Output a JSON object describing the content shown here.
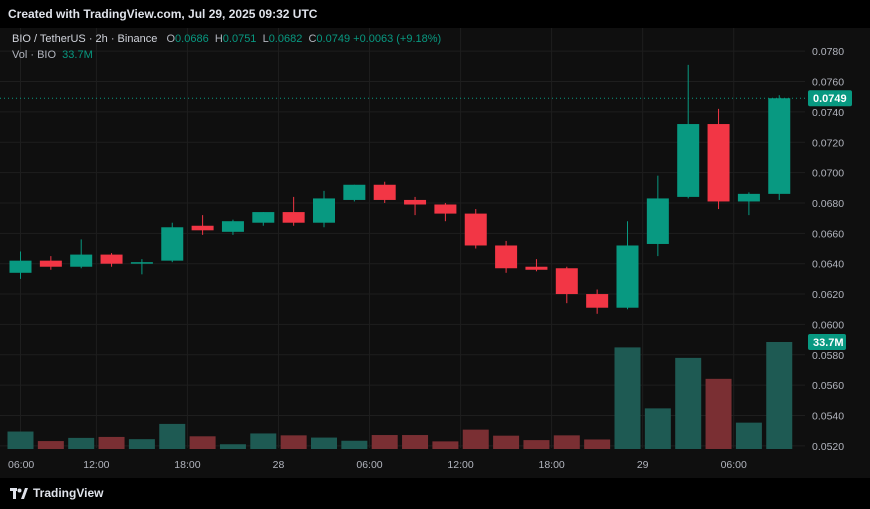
{
  "header": {
    "created_text": "Created with TradingView.com, Jul 29, 2025 09:32 UTC",
    "symbol": "BIO / TetherUS · 2h · Binance",
    "o_label": "O",
    "o_value": "0.0686",
    "h_label": "H",
    "h_value": "0.0751",
    "l_label": "L",
    "l_value": "0.0682",
    "c_label": "C",
    "c_value": "0.0749",
    "change": "+0.0063 (+9.18%)",
    "vol_label": "Vol · BIO",
    "vol_value": "33.7M"
  },
  "footer": {
    "brand": "TradingView"
  },
  "colors": {
    "up": "#089981",
    "down": "#f23645",
    "up_vol": "#1e5a53",
    "down_vol": "#7a2f33",
    "grid": "#1e1e1e"
  },
  "chart_data": {
    "type": "candlestick",
    "price_axis": {
      "ticks": [
        "0.0520",
        "0.0540",
        "0.0560",
        "0.0580",
        "0.0600",
        "0.0620",
        "0.0640",
        "0.0660",
        "0.0680",
        "0.0700",
        "0.0720",
        "0.0740",
        "0.0760",
        "0.0780"
      ],
      "range": [
        0.0512,
        0.079
      ]
    },
    "time_axis_labels": [
      "06:00",
      "12:00",
      "18:00",
      "28",
      "06:00",
      "12:00",
      "18:00",
      "29",
      "06:00"
    ],
    "time_axis_label_positions": [
      0,
      3,
      6,
      9,
      12,
      15,
      18,
      21,
      24
    ],
    "last_price_label": "0.0749",
    "volume_label": "33.7M",
    "candles": [
      {
        "o": 0.0634,
        "h": 0.0648,
        "l": 0.063,
        "c": 0.0642,
        "v": 5.5
      },
      {
        "o": 0.0642,
        "h": 0.0645,
        "l": 0.0636,
        "c": 0.0638,
        "v": 2.5
      },
      {
        "o": 0.0638,
        "h": 0.0656,
        "l": 0.0637,
        "c": 0.0646,
        "v": 3.5
      },
      {
        "o": 0.0646,
        "h": 0.0647,
        "l": 0.0638,
        "c": 0.064,
        "v": 3.8
      },
      {
        "o": 0.064,
        "h": 0.0643,
        "l": 0.0633,
        "c": 0.0641,
        "v": 3.1
      },
      {
        "o": 0.0642,
        "h": 0.0667,
        "l": 0.0641,
        "c": 0.0664,
        "v": 7.9
      },
      {
        "o": 0.0665,
        "h": 0.0672,
        "l": 0.0659,
        "c": 0.0662,
        "v": 4.0
      },
      {
        "o": 0.0661,
        "h": 0.0669,
        "l": 0.0659,
        "c": 0.0668,
        "v": 1.5
      },
      {
        "o": 0.0667,
        "h": 0.0674,
        "l": 0.0665,
        "c": 0.0674,
        "v": 4.9
      },
      {
        "o": 0.0674,
        "h": 0.0684,
        "l": 0.0665,
        "c": 0.0667,
        "v": 4.3
      },
      {
        "o": 0.0667,
        "h": 0.0688,
        "l": 0.0664,
        "c": 0.0683,
        "v": 3.6
      },
      {
        "o": 0.0682,
        "h": 0.0692,
        "l": 0.0681,
        "c": 0.0692,
        "v": 2.6
      },
      {
        "o": 0.0692,
        "h": 0.0694,
        "l": 0.068,
        "c": 0.0682,
        "v": 4.4
      },
      {
        "o": 0.0682,
        "h": 0.0684,
        "l": 0.0672,
        "c": 0.0679,
        "v": 4.4
      },
      {
        "o": 0.0679,
        "h": 0.068,
        "l": 0.0668,
        "c": 0.0673,
        "v": 2.4
      },
      {
        "o": 0.0673,
        "h": 0.0676,
        "l": 0.065,
        "c": 0.0652,
        "v": 6.1
      },
      {
        "o": 0.0652,
        "h": 0.0655,
        "l": 0.0634,
        "c": 0.0637,
        "v": 4.2
      },
      {
        "o": 0.0638,
        "h": 0.0643,
        "l": 0.0635,
        "c": 0.0636,
        "v": 2.8
      },
      {
        "o": 0.0637,
        "h": 0.0638,
        "l": 0.0614,
        "c": 0.062,
        "v": 4.3
      },
      {
        "o": 0.062,
        "h": 0.0623,
        "l": 0.0607,
        "c": 0.0611,
        "v": 3.0
      },
      {
        "o": 0.0611,
        "h": 0.0668,
        "l": 0.061,
        "c": 0.0652,
        "v": 32.0
      },
      {
        "o": 0.0653,
        "h": 0.0698,
        "l": 0.0645,
        "c": 0.0683,
        "v": 12.8
      },
      {
        "o": 0.0684,
        "h": 0.0771,
        "l": 0.0683,
        "c": 0.0732,
        "v": 28.7
      },
      {
        "o": 0.0732,
        "h": 0.0742,
        "l": 0.0676,
        "c": 0.0681,
        "v": 22.1
      },
      {
        "o": 0.0681,
        "h": 0.0687,
        "l": 0.0672,
        "c": 0.0686,
        "v": 8.3
      },
      {
        "o": 0.0686,
        "h": 0.0751,
        "l": 0.0682,
        "c": 0.0749,
        "v": 33.7
      }
    ]
  }
}
